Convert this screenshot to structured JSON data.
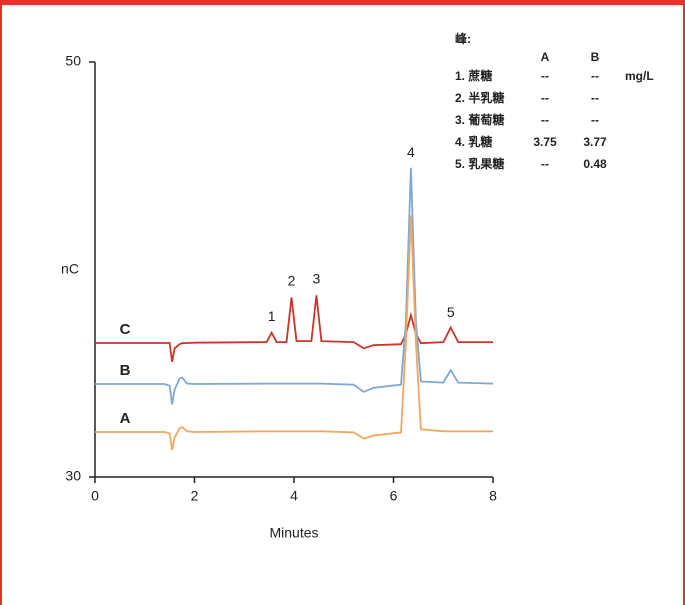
{
  "chart_data": {
    "type": "line",
    "y_label": "nC",
    "x_label": "Minutes",
    "xlim": [
      0,
      8
    ],
    "xticks": [
      0,
      2,
      4,
      6,
      8
    ],
    "ylim": [
      30,
      50
    ],
    "yticks": [
      30,
      50
    ],
    "x": [
      0,
      1.4,
      1.5,
      1.55,
      1.6,
      1.7,
      1.75,
      1.85,
      2.0,
      3.45,
      3.55,
      3.65,
      3.85,
      3.95,
      4.05,
      4.35,
      4.45,
      4.55,
      5.2,
      5.4,
      5.6,
      6.15,
      6.25,
      6.35,
      6.45,
      6.55,
      7.0,
      7.15,
      7.3,
      8
    ],
    "series": [
      {
        "name": "C",
        "color": "#c8352d",
        "values": [
          36.46,
          36.46,
          36.46,
          35.55,
          36.2,
          36.4,
          36.45,
          36.46,
          36.47,
          36.5,
          36.95,
          36.5,
          36.5,
          38.65,
          36.55,
          36.55,
          38.75,
          36.55,
          36.5,
          36.2,
          36.35,
          36.4,
          36.9,
          37.8,
          36.9,
          36.45,
          36.5,
          37.2,
          36.5,
          36.5
        ]
      },
      {
        "name": "B",
        "color": "#7fa7d6",
        "values": [
          34.48,
          34.48,
          34.4,
          33.5,
          34.2,
          34.75,
          34.8,
          34.5,
          34.48,
          34.5,
          34.5,
          34.5,
          34.5,
          34.5,
          34.5,
          34.5,
          34.5,
          34.5,
          34.45,
          34.1,
          34.3,
          34.45,
          37.5,
          44.9,
          37.5,
          34.6,
          34.55,
          35.15,
          34.55,
          34.5
        ]
      },
      {
        "name": "A",
        "color": "#f0a860",
        "values": [
          32.17,
          32.17,
          32.1,
          31.3,
          31.9,
          32.35,
          32.4,
          32.2,
          32.17,
          32.2,
          32.2,
          32.2,
          32.2,
          32.2,
          32.2,
          32.2,
          32.2,
          32.2,
          32.15,
          31.85,
          32.0,
          32.15,
          36.5,
          42.6,
          36.5,
          32.3,
          32.2,
          32.2,
          32.2,
          32.2
        ]
      }
    ],
    "annotations": [
      {
        "text": "1",
        "x": 3.55,
        "y": 37.7
      },
      {
        "text": "2",
        "x": 3.95,
        "y": 39.4
      },
      {
        "text": "3",
        "x": 4.45,
        "y": 39.5
      },
      {
        "text": "4",
        "x": 6.35,
        "y": 45.6
      },
      {
        "text": "5",
        "x": 7.15,
        "y": 37.9
      }
    ],
    "peak_table": {
      "title": "峰:",
      "columns": [
        "A",
        "B"
      ],
      "rows": [
        [
          "1. 蔗糖",
          "--",
          "--",
          "mg/L"
        ],
        [
          "2. 半乳糖",
          "--",
          "--"
        ],
        [
          "3. 葡萄糖",
          "--",
          "--"
        ],
        [
          "4. 乳糖",
          3.75,
          3.77
        ],
        [
          "5. 乳果糖",
          "--",
          0.48
        ]
      ]
    }
  }
}
